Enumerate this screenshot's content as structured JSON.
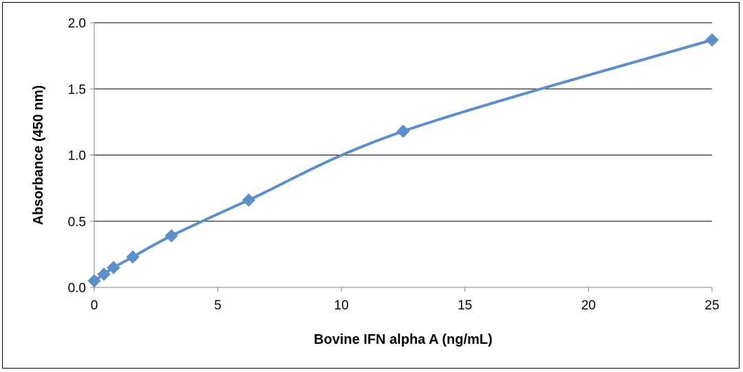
{
  "chart_data": {
    "type": "line",
    "title": "",
    "xlabel": "Bovine IFN alpha A (ng/mL)",
    "ylabel": "Absorbance  (450 nm)",
    "xlim": [
      0,
      25
    ],
    "ylim": [
      0,
      2.0
    ],
    "x_ticks": [
      0,
      5,
      10,
      15,
      20,
      25
    ],
    "y_ticks": [
      0,
      0.5,
      1.0,
      1.5,
      2.0
    ],
    "x_tick_labels": [
      "0",
      "5",
      "10",
      "15",
      "20",
      "25"
    ],
    "y_tick_labels": [
      "0.0",
      "0.5",
      "1.0",
      "1.5",
      "2.0"
    ],
    "grid": "horizontal",
    "legend": "none",
    "series": [
      {
        "x": [
          0,
          0.39,
          0.78,
          1.56,
          3.125,
          6.25,
          12.5,
          25
        ],
        "y": [
          0.05,
          0.1,
          0.15,
          0.23,
          0.39,
          0.66,
          1.18,
          1.87
        ],
        "color": "#5b8fc7",
        "marker": "diamond"
      }
    ]
  }
}
